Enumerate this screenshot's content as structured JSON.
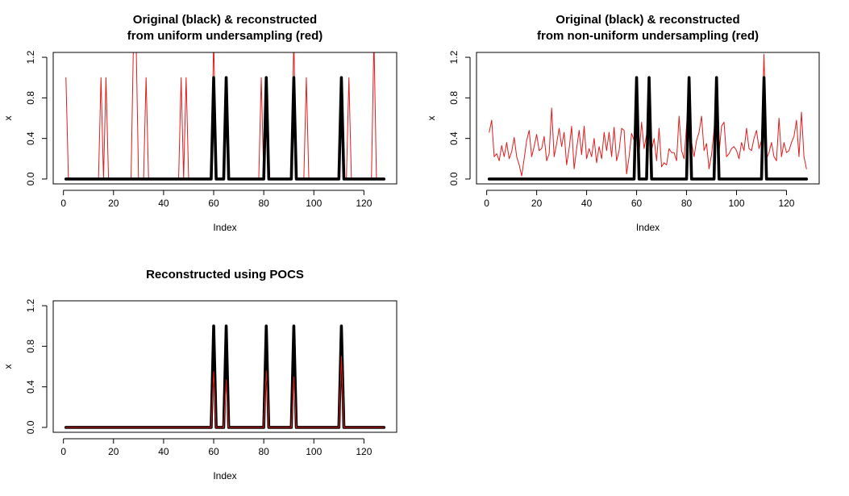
{
  "chart_data": [
    {
      "type": "line",
      "title_lines": [
        "Original (black) & reconstructed",
        "from uniform undersampling (red)"
      ],
      "xlabel": "Index",
      "ylabel": "x",
      "xlim": [
        1,
        128
      ],
      "ylim": [
        0,
        1.2
      ],
      "xticks": [
        0,
        20,
        40,
        60,
        80,
        100,
        120
      ],
      "yticks": [
        0.0,
        0.4,
        0.8,
        1.2
      ],
      "ytick_labels": [
        "0.0",
        "0.4",
        "0.8",
        "1.2"
      ],
      "series": [
        {
          "color": "#e41a1c",
          "x": [
            1,
            2,
            3,
            14,
            15,
            16,
            17,
            18,
            19,
            27,
            28,
            29,
            30,
            32,
            33,
            34,
            46,
            47,
            48,
            49,
            50,
            59,
            60,
            61,
            64,
            65,
            66,
            78,
            79,
            80,
            81,
            82,
            91,
            92,
            93,
            96,
            97,
            98,
            110,
            111,
            112,
            113,
            114,
            115,
            123,
            124,
            125,
            128
          ],
          "y": [
            1.0,
            0,
            0,
            0,
            1.0,
            0,
            1.0,
            0,
            0,
            0,
            1.4,
            1.4,
            0,
            0,
            1.0,
            0,
            0,
            1.0,
            0,
            1.0,
            0,
            0,
            1.4,
            0,
            0,
            1.0,
            0,
            0,
            1.0,
            0,
            1.0,
            0,
            0,
            1.4,
            0,
            0,
            1.0,
            0,
            0,
            1.0,
            0,
            0,
            1.0,
            0,
            0,
            1.4,
            0,
            0
          ]
        },
        {
          "color": "#000000",
          "x": [
            1,
            59,
            60,
            61,
            64,
            65,
            66,
            80,
            81,
            82,
            91,
            92,
            93,
            110,
            111,
            112,
            128
          ],
          "y": [
            0,
            0,
            1,
            0,
            0,
            1,
            0,
            0,
            1,
            0,
            0,
            1,
            0,
            0,
            1,
            0,
            0
          ]
        }
      ]
    },
    {
      "type": "line",
      "title_lines": [
        "Original (black) & reconstructed",
        "from non-uniform undersampling (red)"
      ],
      "xlabel": "Index",
      "ylabel": "x",
      "xlim": [
        1,
        128
      ],
      "ylim": [
        0,
        1.2
      ],
      "xticks": [
        0,
        20,
        40,
        60,
        80,
        100,
        120
      ],
      "yticks": [
        0.0,
        0.4,
        0.8,
        1.2
      ],
      "ytick_labels": [
        "0.0",
        "0.4",
        "0.8",
        "1.2"
      ],
      "series": [
        {
          "color": "#e41a1c",
          "x": [
            1,
            2,
            3,
            4,
            5,
            6,
            7,
            8,
            9,
            10,
            11,
            12,
            13,
            14,
            15,
            16,
            17,
            18,
            19,
            20,
            21,
            22,
            23,
            24,
            25,
            26,
            27,
            28,
            29,
            30,
            31,
            32,
            33,
            34,
            35,
            36,
            37,
            38,
            39,
            40,
            41,
            42,
            43,
            44,
            45,
            46,
            47,
            48,
            49,
            50,
            51,
            52,
            53,
            54,
            55,
            56,
            57,
            58,
            59,
            60,
            61,
            62,
            63,
            64,
            65,
            66,
            67,
            68,
            69,
            70,
            71,
            72,
            73,
            74,
            75,
            76,
            77,
            78,
            79,
            80,
            81,
            82,
            83,
            84,
            85,
            86,
            87,
            88,
            89,
            90,
            91,
            92,
            93,
            94,
            95,
            96,
            97,
            98,
            99,
            100,
            101,
            102,
            103,
            104,
            105,
            106,
            107,
            108,
            109,
            110,
            111,
            112,
            113,
            114,
            115,
            116,
            117,
            118,
            119,
            120,
            121,
            122,
            123,
            124,
            125,
            126,
            127,
            128
          ],
          "y": [
            0.46,
            0.58,
            0.22,
            0.25,
            0.18,
            0.33,
            0.22,
            0.36,
            0.2,
            0.27,
            0.41,
            0.22,
            0.14,
            0.03,
            0.2,
            0.38,
            0.48,
            0.22,
            0.32,
            0.44,
            0.28,
            0.3,
            0.42,
            0.18,
            0.25,
            0.7,
            0.22,
            0.35,
            0.5,
            0.32,
            0.46,
            0.14,
            0.3,
            0.52,
            0.1,
            0.3,
            0.48,
            0.24,
            0.52,
            0.2,
            0.3,
            0.22,
            0.4,
            0.16,
            0.32,
            0.2,
            0.46,
            0.28,
            0.46,
            0.22,
            0.51,
            0.18,
            0.28,
            0.5,
            0.48,
            0.05,
            0.22,
            0.45,
            0.38,
            0.92,
            0.25,
            0.56,
            0.3,
            0.44,
            0.76,
            0.28,
            0.4,
            0.18,
            0.5,
            0.12,
            0.16,
            0.14,
            0.3,
            0.26,
            0.26,
            0.18,
            0.62,
            0.28,
            0.2,
            0.52,
            0.92,
            0.36,
            0.22,
            0.38,
            0.46,
            0.62,
            0.28,
            0.35,
            0.1,
            0.24,
            0.48,
            0.82,
            0.25,
            0.52,
            0.56,
            0.22,
            0.25,
            0.3,
            0.32,
            0.28,
            0.2,
            0.36,
            0.28,
            0.5,
            0.3,
            0.28,
            0.4,
            0.48,
            0.3,
            0.38,
            1.23,
            0.2,
            0.26,
            0.36,
            0.22,
            0.18,
            0.6,
            0.22,
            0.36,
            0.26,
            0.28,
            0.36,
            0.42,
            0.58,
            0.22,
            0.66,
            0.22,
            0.1
          ]
        },
        {
          "color": "#000000",
          "x": [
            1,
            59,
            60,
            61,
            64,
            65,
            66,
            80,
            81,
            82,
            91,
            92,
            93,
            110,
            111,
            112,
            128
          ],
          "y": [
            0,
            0,
            1,
            0,
            0,
            1,
            0,
            0,
            1,
            0,
            0,
            1,
            0,
            0,
            1,
            0,
            0
          ]
        }
      ]
    },
    {
      "type": "line",
      "title_lines": [
        "Reconstructed using POCS"
      ],
      "xlabel": "Index",
      "ylabel": "x",
      "xlim": [
        1,
        128
      ],
      "ylim": [
        0,
        1.2
      ],
      "xticks": [
        0,
        20,
        40,
        60,
        80,
        100,
        120
      ],
      "yticks": [
        0.0,
        0.4,
        0.8,
        1.2
      ],
      "ytick_labels": [
        "0.0",
        "0.4",
        "0.8",
        "1.2"
      ],
      "series": [
        {
          "color": "#000000",
          "x": [
            1,
            59,
            60,
            61,
            64,
            65,
            66,
            80,
            81,
            82,
            91,
            92,
            93,
            110,
            111,
            112,
            128
          ],
          "y": [
            0,
            0,
            1,
            0,
            0,
            1,
            0,
            0,
            1,
            0,
            0,
            1,
            0,
            0,
            1,
            0,
            0
          ]
        },
        {
          "color": "#e41a1c",
          "x": [
            1,
            59,
            60,
            61,
            64,
            65,
            66,
            80,
            81,
            82,
            91,
            92,
            93,
            110,
            111,
            112,
            128
          ],
          "y": [
            0,
            0,
            0.55,
            0,
            0,
            0.47,
            0,
            0,
            0.56,
            0,
            0,
            0.5,
            0,
            0,
            0.7,
            0,
            0
          ]
        }
      ]
    }
  ]
}
